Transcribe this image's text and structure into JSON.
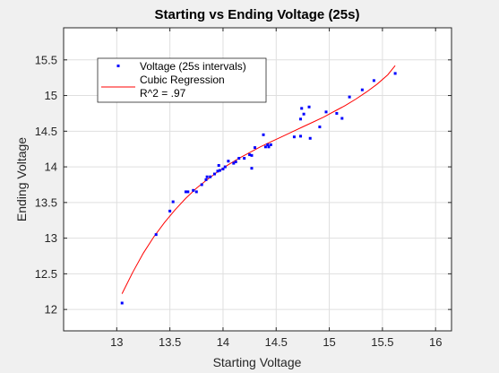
{
  "chart_data": {
    "type": "scatter",
    "title": "Starting vs Ending Voltage (25s)",
    "xlabel": "Starting Voltage",
    "ylabel": "Ending Voltage",
    "xlim": [
      12.5,
      16.15
    ],
    "ylim": [
      11.7,
      15.95
    ],
    "xticks": [
      "13",
      "13.5",
      "14",
      "14.5",
      "15",
      "15.5",
      "16"
    ],
    "yticks": [
      "12",
      "12.5",
      "13",
      "13.5",
      "14",
      "14.5",
      "15",
      "15.5"
    ],
    "grid": true,
    "legend_location": "top-left",
    "legend": [
      {
        "label": "Voltage (25s intervals)",
        "marker": "point",
        "color": "#0000ff"
      },
      {
        "label": "Cubic Regression",
        "marker": "line",
        "color": "#ff0000"
      },
      {
        "label": "R^2 = .97",
        "marker": "none",
        "color": "#000000"
      }
    ],
    "series": [
      {
        "name": "Voltage (25s intervals)",
        "kind": "scatter",
        "color": "#0000ff",
        "points": [
          [
            13.05,
            12.09
          ],
          [
            13.37,
            13.05
          ],
          [
            13.5,
            13.38
          ],
          [
            13.53,
            13.51
          ],
          [
            13.65,
            13.65
          ],
          [
            13.67,
            13.65
          ],
          [
            13.72,
            13.67
          ],
          [
            13.75,
            13.65
          ],
          [
            13.8,
            13.75
          ],
          [
            13.84,
            13.82
          ],
          [
            13.85,
            13.86
          ],
          [
            13.88,
            13.86
          ],
          [
            13.92,
            13.9
          ],
          [
            13.95,
            13.94
          ],
          [
            13.96,
            14.02
          ],
          [
            13.97,
            13.95
          ],
          [
            14.0,
            13.97
          ],
          [
            14.02,
            14.0
          ],
          [
            14.05,
            14.08
          ],
          [
            14.1,
            14.05
          ],
          [
            14.12,
            14.07
          ],
          [
            14.15,
            14.12
          ],
          [
            14.2,
            14.12
          ],
          [
            14.25,
            14.17
          ],
          [
            14.27,
            14.16
          ],
          [
            14.27,
            13.98
          ],
          [
            14.3,
            14.27
          ],
          [
            14.38,
            14.45
          ],
          [
            14.4,
            14.28
          ],
          [
            14.42,
            14.31
          ],
          [
            14.43,
            14.28
          ],
          [
            14.45,
            14.31
          ],
          [
            14.67,
            14.42
          ],
          [
            14.73,
            14.43
          ],
          [
            14.73,
            14.67
          ],
          [
            14.74,
            14.82
          ],
          [
            14.76,
            14.74
          ],
          [
            14.81,
            14.84
          ],
          [
            14.82,
            14.4
          ],
          [
            14.91,
            14.56
          ],
          [
            14.97,
            14.77
          ],
          [
            15.07,
            14.75
          ],
          [
            15.12,
            14.68
          ],
          [
            15.19,
            14.98
          ],
          [
            15.31,
            15.08
          ],
          [
            15.42,
            15.21
          ],
          [
            15.62,
            15.31
          ]
        ]
      },
      {
        "name": "Cubic Regression",
        "kind": "line",
        "color": "#ff0000",
        "x": [
          13.05,
          13.15,
          13.25,
          13.35,
          13.45,
          13.55,
          13.65,
          13.75,
          13.85,
          13.95,
          14.05,
          14.15,
          14.25,
          14.35,
          14.45,
          14.55,
          14.65,
          14.75,
          14.85,
          14.95,
          15.05,
          15.15,
          15.25,
          15.35,
          15.45,
          15.55,
          15.62
        ],
        "y": [
          12.22,
          12.52,
          12.79,
          13.02,
          13.22,
          13.4,
          13.56,
          13.7,
          13.82,
          13.93,
          14.03,
          14.12,
          14.2,
          14.28,
          14.35,
          14.42,
          14.49,
          14.56,
          14.63,
          14.7,
          14.78,
          14.86,
          14.95,
          15.05,
          15.16,
          15.29,
          15.42
        ]
      }
    ]
  }
}
